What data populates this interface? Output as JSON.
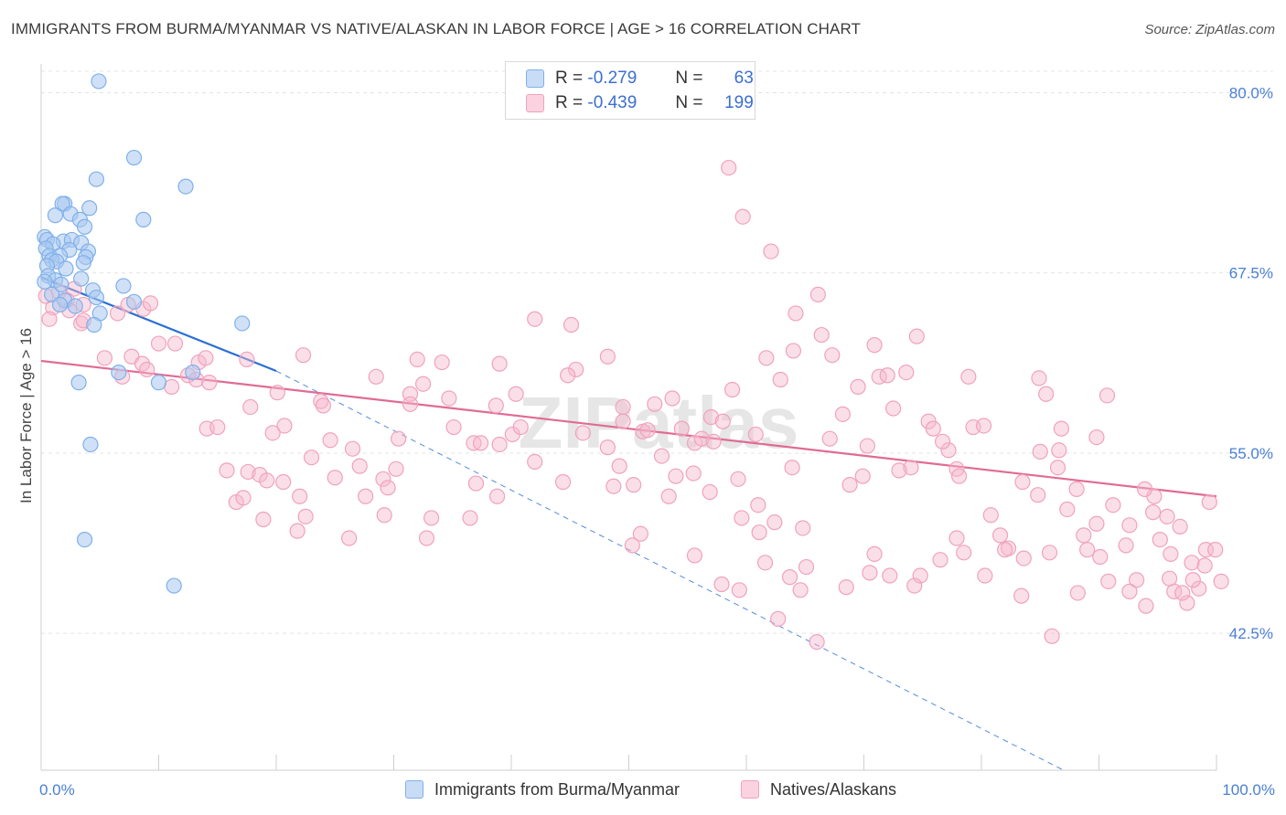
{
  "header": {
    "title": "IMMIGRANTS FROM BURMA/MYANMAR VS NATIVE/ALASKAN IN LABOR FORCE | AGE > 16 CORRELATION CHART",
    "source": "Source: ZipAtlas.com"
  },
  "watermark": "ZIPatlas",
  "legend_top": {
    "rows": [
      {
        "r_label": "R =",
        "r_value": "-0.279",
        "n_label": "N =",
        "n_value": "63",
        "color": "#a9c8f0"
      },
      {
        "r_label": "R =",
        "r_value": "-0.439",
        "n_label": "N =",
        "n_value": "199",
        "color": "#f6b9cd"
      }
    ]
  },
  "legend_bottom": {
    "items": [
      {
        "label": "Immigrants from Burma/Myanmar",
        "color": "#a9c8f0"
      },
      {
        "label": "Natives/Alaskans",
        "color": "#f6b9cd"
      }
    ]
  },
  "chart_data": {
    "type": "scatter",
    "ylabel": "In Labor Force | Age > 16",
    "xlim": [
      0,
      100
    ],
    "ylim": [
      33,
      82
    ],
    "y_ticks": [
      {
        "v": 80.0,
        "label": "80.0%"
      },
      {
        "v": 67.5,
        "label": "67.5%"
      },
      {
        "v": 55.0,
        "label": "55.0%"
      },
      {
        "v": 42.5,
        "label": "42.5%"
      }
    ],
    "x_tick_labels": {
      "min": "0.0%",
      "max": "100.0%"
    },
    "grid": true,
    "series": [
      {
        "name": "Immigrants from Burma/Myanmar",
        "color": "#7fb0ea",
        "fill": "rgba(169,200,240,0.55)",
        "trend": {
          "x0": 0,
          "y0": 67.2,
          "x1": 20,
          "y1": 60.7,
          "color": "#2a6fd4"
        },
        "trend_ext": {
          "x0": 20,
          "y0": 60.7,
          "x1": 87,
          "y1": 33.0
        },
        "points": [
          [
            4.9,
            80.8
          ],
          [
            7.9,
            75.5
          ],
          [
            4.7,
            74.0
          ],
          [
            12.3,
            73.5
          ],
          [
            2.0,
            72.3
          ],
          [
            1.8,
            72.3
          ],
          [
            4.1,
            72.0
          ],
          [
            1.2,
            71.5
          ],
          [
            2.5,
            71.6
          ],
          [
            3.3,
            71.2
          ],
          [
            8.7,
            71.2
          ],
          [
            3.7,
            70.7
          ],
          [
            0.3,
            70.0
          ],
          [
            0.5,
            69.8
          ],
          [
            1.9,
            69.7
          ],
          [
            2.6,
            69.8
          ],
          [
            3.4,
            69.6
          ],
          [
            1.0,
            69.5
          ],
          [
            0.4,
            69.2
          ],
          [
            2.4,
            69.1
          ],
          [
            4.0,
            69.0
          ],
          [
            0.7,
            68.7
          ],
          [
            1.6,
            68.7
          ],
          [
            3.8,
            68.6
          ],
          [
            0.9,
            68.4
          ],
          [
            1.3,
            68.3
          ],
          [
            3.6,
            68.2
          ],
          [
            0.5,
            68.0
          ],
          [
            2.1,
            67.8
          ],
          [
            0.6,
            67.3
          ],
          [
            1.2,
            67.0
          ],
          [
            3.4,
            67.1
          ],
          [
            0.3,
            66.9
          ],
          [
            1.7,
            66.7
          ],
          [
            7.0,
            66.6
          ],
          [
            4.4,
            66.3
          ],
          [
            0.9,
            66.0
          ],
          [
            2.0,
            65.6
          ],
          [
            4.7,
            65.8
          ],
          [
            7.9,
            65.5
          ],
          [
            1.6,
            65.3
          ],
          [
            2.9,
            65.2
          ],
          [
            5.0,
            64.7
          ],
          [
            17.1,
            64.0
          ],
          [
            4.5,
            63.9
          ],
          [
            6.6,
            60.6
          ],
          [
            10.0,
            59.9
          ],
          [
            12.9,
            60.6
          ],
          [
            3.2,
            59.9
          ],
          [
            4.2,
            55.6
          ],
          [
            3.7,
            49.0
          ],
          [
            11.3,
            45.8
          ]
        ]
      },
      {
        "name": "Natives/Alaskans",
        "color": "#f0a2bd",
        "fill": "rgba(246,185,205,0.45)",
        "trend": {
          "x0": 0,
          "y0": 61.4,
          "x1": 100,
          "y1": 52.0,
          "color": "#e06b95"
        },
        "points": [
          [
            0.4,
            65.9
          ],
          [
            1.5,
            66.2
          ],
          [
            2.8,
            66.4
          ],
          [
            2.2,
            65.6
          ],
          [
            3.6,
            65.3
          ],
          [
            7.4,
            65.3
          ],
          [
            8.7,
            65.0
          ],
          [
            9.3,
            65.4
          ],
          [
            6.5,
            64.7
          ],
          [
            3.4,
            64.0
          ],
          [
            2.4,
            64.9
          ],
          [
            1.0,
            65.1
          ],
          [
            0.7,
            64.3
          ],
          [
            3.6,
            64.2
          ],
          [
            10.0,
            62.6
          ],
          [
            11.4,
            62.6
          ],
          [
            5.4,
            61.6
          ],
          [
            7.7,
            61.7
          ],
          [
            8.6,
            61.2
          ],
          [
            13.4,
            61.3
          ],
          [
            14.0,
            61.6
          ],
          [
            17.5,
            61.5
          ],
          [
            22.3,
            61.8
          ],
          [
            6.9,
            60.3
          ],
          [
            9.0,
            60.8
          ],
          [
            11.1,
            59.6
          ],
          [
            12.5,
            60.4
          ],
          [
            13.2,
            60.1
          ],
          [
            14.3,
            59.9
          ],
          [
            17.8,
            58.2
          ],
          [
            20.1,
            59.2
          ],
          [
            23.8,
            58.6
          ],
          [
            24.0,
            58.3
          ],
          [
            20.7,
            56.9
          ],
          [
            14.1,
            56.7
          ],
          [
            15.0,
            56.8
          ],
          [
            19.7,
            56.4
          ],
          [
            23.0,
            54.7
          ],
          [
            24.6,
            55.9
          ],
          [
            25.0,
            53.3
          ],
          [
            26.5,
            55.3
          ],
          [
            27.1,
            54.1
          ],
          [
            15.8,
            53.8
          ],
          [
            17.6,
            53.7
          ],
          [
            18.6,
            53.5
          ],
          [
            19.2,
            53.1
          ],
          [
            20.6,
            53.0
          ],
          [
            22.0,
            52.0
          ],
          [
            16.6,
            51.6
          ],
          [
            17.2,
            51.9
          ],
          [
            18.9,
            50.4
          ],
          [
            22.5,
            50.6
          ],
          [
            21.8,
            49.6
          ],
          [
            26.2,
            49.1
          ],
          [
            27.6,
            52.0
          ],
          [
            29.1,
            53.2
          ],
          [
            29.5,
            52.6
          ],
          [
            30.4,
            56.0
          ],
          [
            31.4,
            59.1
          ],
          [
            32.0,
            61.5
          ],
          [
            28.5,
            60.3
          ],
          [
            32.5,
            59.8
          ],
          [
            31.4,
            58.4
          ],
          [
            34.1,
            61.3
          ],
          [
            34.7,
            58.8
          ],
          [
            35.1,
            56.8
          ],
          [
            36.8,
            55.7
          ],
          [
            37.0,
            52.9
          ],
          [
            37.4,
            55.7
          ],
          [
            38.7,
            58.3
          ],
          [
            38.8,
            52.0
          ],
          [
            39.0,
            55.6
          ],
          [
            36.5,
            50.5
          ],
          [
            32.8,
            49.1
          ],
          [
            30.2,
            53.9
          ],
          [
            29.2,
            50.7
          ],
          [
            33.2,
            50.5
          ],
          [
            40.1,
            56.3
          ],
          [
            39.0,
            61.2
          ],
          [
            40.4,
            59.1
          ],
          [
            40.8,
            56.8
          ],
          [
            42.0,
            54.4
          ],
          [
            42.0,
            64.3
          ],
          [
            44.4,
            53.0
          ],
          [
            45.1,
            63.9
          ],
          [
            45.5,
            60.8
          ],
          [
            44.8,
            60.4
          ],
          [
            46.1,
            56.4
          ],
          [
            48.2,
            55.4
          ],
          [
            48.2,
            61.7
          ],
          [
            49.5,
            58.2
          ],
          [
            49.2,
            54.1
          ],
          [
            48.7,
            52.7
          ],
          [
            49.5,
            57.2
          ],
          [
            50.4,
            52.8
          ],
          [
            50.3,
            48.6
          ],
          [
            51.0,
            49.4
          ],
          [
            51.2,
            56.5
          ],
          [
            51.6,
            56.6
          ],
          [
            52.2,
            58.4
          ],
          [
            53.7,
            58.8
          ],
          [
            53.4,
            52.0
          ],
          [
            54.5,
            56.7
          ],
          [
            54.0,
            53.4
          ],
          [
            55.6,
            55.7
          ],
          [
            56.2,
            56.0
          ],
          [
            56.9,
            52.3
          ],
          [
            57.2,
            55.8
          ],
          [
            57.0,
            57.5
          ],
          [
            58.8,
            59.4
          ],
          [
            58.0,
            57.2
          ],
          [
            59.3,
            53.2
          ],
          [
            59.6,
            50.5
          ],
          [
            60.8,
            56.3
          ],
          [
            61.1,
            49.5
          ],
          [
            61.7,
            61.6
          ],
          [
            62.4,
            50.2
          ],
          [
            63.9,
            54.0
          ],
          [
            64.0,
            62.1
          ],
          [
            62.9,
            60.1
          ],
          [
            64.2,
            64.7
          ],
          [
            64.8,
            49.8
          ],
          [
            65.1,
            47.1
          ],
          [
            66.1,
            66.0
          ],
          [
            66.4,
            63.2
          ],
          [
            67.3,
            61.8
          ],
          [
            67.1,
            56.0
          ],
          [
            68.2,
            57.7
          ],
          [
            68.8,
            52.8
          ],
          [
            69.5,
            59.6
          ],
          [
            69.9,
            53.4
          ],
          [
            70.3,
            55.5
          ],
          [
            70.9,
            62.5
          ],
          [
            71.3,
            60.3
          ],
          [
            72.0,
            60.4
          ],
          [
            72.5,
            58.1
          ],
          [
            73.6,
            60.6
          ],
          [
            74.5,
            63.1
          ],
          [
            74.0,
            54.0
          ],
          [
            75.5,
            57.2
          ],
          [
            75.9,
            56.7
          ],
          [
            77.2,
            55.2
          ],
          [
            77.9,
            53.9
          ],
          [
            78.1,
            53.4
          ],
          [
            78.9,
            60.3
          ],
          [
            79.3,
            56.8
          ],
          [
            80.2,
            56.9
          ],
          [
            80.8,
            50.7
          ],
          [
            81.6,
            49.3
          ],
          [
            82.3,
            48.4
          ],
          [
            83.5,
            53.0
          ],
          [
            84.9,
            60.2
          ],
          [
            85.0,
            55.1
          ],
          [
            85.5,
            59.1
          ],
          [
            85.8,
            48.1
          ],
          [
            86.5,
            54.0
          ],
          [
            86.6,
            55.2
          ],
          [
            87.3,
            51.1
          ],
          [
            88.1,
            52.5
          ],
          [
            89.0,
            48.3
          ],
          [
            89.8,
            56.1
          ],
          [
            89.8,
            50.1
          ],
          [
            90.7,
            59.0
          ],
          [
            91.2,
            51.4
          ],
          [
            92.3,
            48.6
          ],
          [
            93.2,
            46.2
          ],
          [
            94.7,
            52.0
          ],
          [
            95.8,
            50.6
          ],
          [
            96.1,
            48.0
          ],
          [
            96.9,
            49.9
          ],
          [
            97.9,
            47.4
          ],
          [
            98.5,
            45.6
          ],
          [
            99.1,
            48.3
          ],
          [
            99.4,
            51.6
          ],
          [
            99.9,
            48.3
          ],
          [
            58.5,
            74.8
          ],
          [
            59.7,
            71.4
          ],
          [
            62.1,
            69.0
          ],
          [
            52.8,
            54.8
          ],
          [
            55.6,
            47.9
          ],
          [
            61.0,
            51.4
          ],
          [
            63.7,
            46.4
          ],
          [
            70.9,
            48.0
          ],
          [
            73.0,
            53.8
          ],
          [
            74.8,
            46.5
          ],
          [
            76.7,
            55.8
          ],
          [
            77.9,
            49.1
          ],
          [
            80.3,
            46.5
          ],
          [
            82.0,
            48.3
          ],
          [
            83.6,
            47.7
          ],
          [
            84.8,
            52.1
          ],
          [
            86.8,
            56.7
          ],
          [
            88.7,
            49.3
          ],
          [
            90.1,
            47.8
          ],
          [
            92.6,
            50.0
          ],
          [
            93.9,
            52.5
          ],
          [
            94.6,
            50.9
          ],
          [
            95.2,
            49.0
          ],
          [
            96.4,
            45.4
          ],
          [
            97.5,
            44.6
          ],
          [
            98.0,
            46.2
          ],
          [
            99.0,
            47.2
          ],
          [
            100.4,
            46.1
          ],
          [
            55.5,
            53.6
          ],
          [
            57.9,
            45.9
          ],
          [
            59.4,
            45.5
          ],
          [
            61.6,
            47.4
          ],
          [
            62.7,
            43.5
          ],
          [
            64.6,
            45.5
          ],
          [
            66.0,
            41.9
          ],
          [
            68.5,
            45.7
          ],
          [
            70.5,
            46.7
          ],
          [
            72.2,
            46.5
          ],
          [
            74.3,
            45.8
          ],
          [
            76.5,
            47.6
          ],
          [
            78.5,
            48.1
          ],
          [
            83.4,
            45.1
          ],
          [
            86.0,
            42.3
          ],
          [
            88.2,
            45.3
          ],
          [
            90.8,
            46.1
          ],
          [
            92.6,
            45.4
          ],
          [
            94.0,
            44.4
          ],
          [
            96.0,
            46.3
          ],
          [
            97.1,
            45.3
          ]
        ]
      }
    ]
  }
}
